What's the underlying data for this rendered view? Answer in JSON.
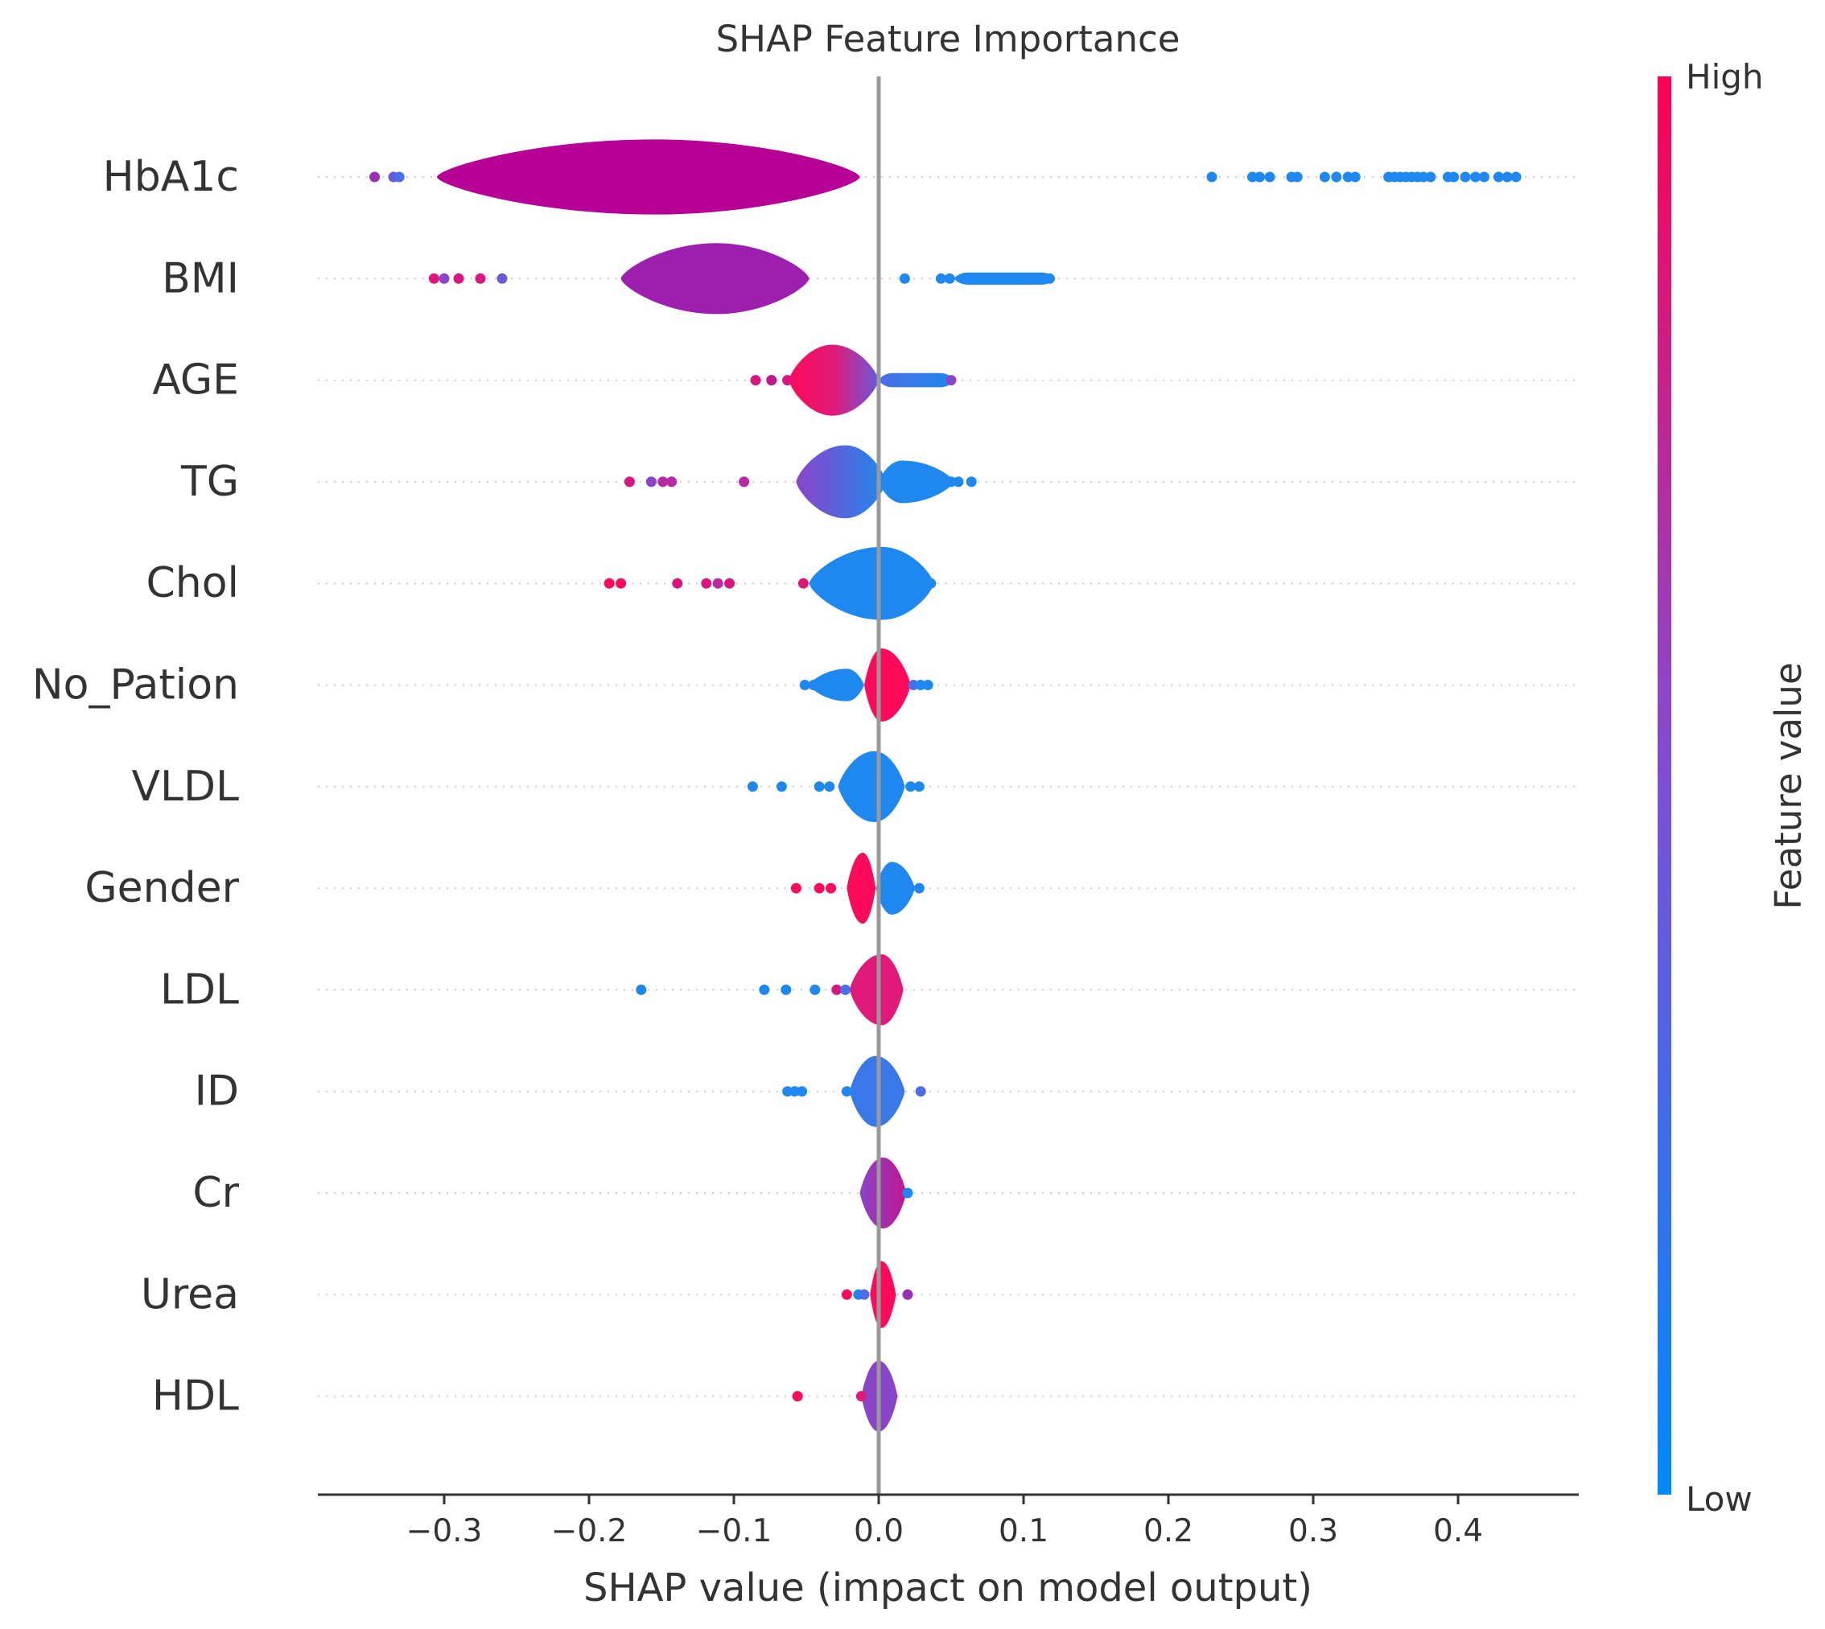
{
  "chart_data": {
    "type": "violin",
    "title": "SHAP Feature Importance",
    "xlabel": "SHAP value (impact on model output)",
    "ylabel": "",
    "xlim": [
      -0.385,
      0.48
    ],
    "x_ticks": [
      {
        "value": -0.3,
        "label": "−0.3"
      },
      {
        "value": -0.2,
        "label": "−0.2"
      },
      {
        "value": -0.1,
        "label": "−0.1"
      },
      {
        "value": 0.0,
        "label": "0.0"
      },
      {
        "value": 0.1,
        "label": "0.1"
      },
      {
        "value": 0.2,
        "label": "0.2"
      },
      {
        "value": 0.3,
        "label": "0.3"
      },
      {
        "value": 0.4,
        "label": "0.4"
      }
    ],
    "colorbar": {
      "label": "Feature value",
      "high_label": "High",
      "low_label": "Low",
      "high_color": "#ff0052",
      "mid_color": "#7c4fd8",
      "low_color": "#008bfb"
    },
    "features": [
      {
        "name": "HbA1c",
        "segments": [
          {
            "x0": -0.305,
            "x1": -0.013,
            "peak": -0.155,
            "h": 0.74,
            "shape": "smooth",
            "colors": [
              "#b60096",
              "#b60096"
            ]
          }
        ],
        "points": [
          {
            "x": -0.348,
            "c": "#9a2fb5"
          },
          {
            "x": -0.335,
            "c": "#6a5ad8"
          },
          {
            "x": -0.331,
            "c": "#4a6ee6"
          },
          {
            "x": 0.23,
            "c": "#1e88f0"
          },
          {
            "x": 0.258,
            "c": "#1e88f0"
          },
          {
            "x": 0.263,
            "c": "#1e88f0"
          },
          {
            "x": 0.27,
            "c": "#1e88f0"
          },
          {
            "x": 0.285,
            "c": "#1e88f0"
          },
          {
            "x": 0.289,
            "c": "#1e88f0"
          },
          {
            "x": 0.308,
            "c": "#1e88f0"
          },
          {
            "x": 0.316,
            "c": "#1e88f0"
          },
          {
            "x": 0.324,
            "c": "#1e88f0"
          },
          {
            "x": 0.329,
            "c": "#1e88f0"
          },
          {
            "x": 0.352,
            "c": "#1e88f0"
          },
          {
            "x": 0.356,
            "c": "#1e88f0"
          },
          {
            "x": 0.36,
            "c": "#1e88f0"
          },
          {
            "x": 0.364,
            "c": "#1e88f0"
          },
          {
            "x": 0.368,
            "c": "#1e88f0"
          },
          {
            "x": 0.372,
            "c": "#1e88f0"
          },
          {
            "x": 0.376,
            "c": "#1e88f0"
          },
          {
            "x": 0.381,
            "c": "#1e88f0"
          },
          {
            "x": 0.393,
            "c": "#1e88f0"
          },
          {
            "x": 0.397,
            "c": "#1e88f0"
          },
          {
            "x": 0.405,
            "c": "#1e88f0"
          },
          {
            "x": 0.412,
            "c": "#1e88f0"
          },
          {
            "x": 0.418,
            "c": "#1e88f0"
          },
          {
            "x": 0.428,
            "c": "#1e88f0"
          },
          {
            "x": 0.434,
            "c": "#1e88f0"
          },
          {
            "x": 0.44,
            "c": "#1e88f0"
          }
        ]
      },
      {
        "name": "BMI",
        "segments": [
          {
            "x0": -0.178,
            "x1": -0.048,
            "peak": -0.112,
            "h": 0.7,
            "shape": "smooth",
            "colors": [
              "#9c1fae",
              "#9c1fae"
            ]
          },
          {
            "x0": 0.052,
            "x1": 0.122,
            "peak": 0.085,
            "h": 0.12,
            "shape": "flat",
            "colors": [
              "#1e88f0",
              "#1e88f0"
            ]
          }
        ],
        "points": [
          {
            "x": -0.307,
            "c": "#e0157a"
          },
          {
            "x": -0.3,
            "c": "#8a44c8"
          },
          {
            "x": -0.29,
            "c": "#d9157e"
          },
          {
            "x": -0.275,
            "c": "#d9157e"
          },
          {
            "x": -0.26,
            "c": "#6a5ad8"
          },
          {
            "x": 0.018,
            "c": "#1e88f0"
          },
          {
            "x": 0.043,
            "c": "#1e88f0"
          },
          {
            "x": 0.049,
            "c": "#1e88f0"
          },
          {
            "x": 0.118,
            "c": "#1e88f0"
          }
        ]
      },
      {
        "name": "AGE",
        "segments": [
          {
            "x0": -0.062,
            "x1": 0.0,
            "peak": -0.032,
            "h": 0.7,
            "shape": "smooth",
            "colors": [
              "#ff0a5a",
              "#e01a78",
              "#6a5ad8"
            ]
          },
          {
            "x0": 0.0,
            "x1": 0.052,
            "peak": 0.006,
            "h": 0.14,
            "shape": "flat",
            "colors": [
              "#4a6ee6",
              "#1e88f0"
            ]
          }
        ],
        "points": [
          {
            "x": -0.085,
            "c": "#d9157e"
          },
          {
            "x": -0.074,
            "c": "#c0178f"
          },
          {
            "x": -0.063,
            "c": "#d9157e"
          },
          {
            "x": 0.05,
            "c": "#8a44c8"
          }
        ]
      },
      {
        "name": "TG",
        "segments": [
          {
            "x0": -0.057,
            "x1": 0.005,
            "peak": -0.023,
            "h": 0.72,
            "shape": "smooth",
            "colors": [
              "#8a44c8",
              "#1e88f0"
            ]
          },
          {
            "x0": 0.0,
            "x1": 0.052,
            "peak": 0.016,
            "h": 0.42,
            "shape": "smooth",
            "colors": [
              "#1e88f0",
              "#1e88f0"
            ]
          }
        ],
        "points": [
          {
            "x": -0.172,
            "c": "#d9157e"
          },
          {
            "x": -0.157,
            "c": "#8a44c8"
          },
          {
            "x": -0.149,
            "c": "#b82aa0"
          },
          {
            "x": -0.143,
            "c": "#b82aa0"
          },
          {
            "x": -0.093,
            "c": "#b82aa0"
          },
          {
            "x": 0.05,
            "c": "#1e88f0"
          },
          {
            "x": 0.055,
            "c": "#1e88f0"
          },
          {
            "x": 0.064,
            "c": "#1e88f0"
          }
        ]
      },
      {
        "name": "Chol",
        "segments": [
          {
            "x0": -0.048,
            "x1": 0.038,
            "peak": 0.002,
            "h": 0.72,
            "shape": "smooth",
            "colors": [
              "#1e88f0",
              "#1e88f0"
            ]
          }
        ],
        "points": [
          {
            "x": -0.186,
            "c": "#ff0a5a"
          },
          {
            "x": -0.178,
            "c": "#ff0a5a"
          },
          {
            "x": -0.139,
            "c": "#d9157e"
          },
          {
            "x": -0.119,
            "c": "#d9157e"
          },
          {
            "x": -0.111,
            "c": "#b82aa0"
          },
          {
            "x": -0.103,
            "c": "#d9157e"
          },
          {
            "x": -0.052,
            "c": "#e0157a"
          },
          {
            "x": 0.036,
            "c": "#1e88f0"
          }
        ]
      },
      {
        "name": "No_Pation",
        "segments": [
          {
            "x0": -0.048,
            "x1": -0.01,
            "peak": -0.022,
            "h": 0.32,
            "shape": "smooth",
            "colors": [
              "#1e88f0",
              "#1e88f0"
            ]
          },
          {
            "x0": -0.01,
            "x1": 0.022,
            "peak": 0.002,
            "h": 0.72,
            "shape": "smooth",
            "colors": [
              "#ff0a5a",
              "#ff0a5a"
            ]
          }
        ],
        "points": [
          {
            "x": -0.051,
            "c": "#1e88f0"
          },
          {
            "x": -0.045,
            "c": "#1e88f0"
          },
          {
            "x": 0.024,
            "c": "#4a6ee6"
          },
          {
            "x": 0.029,
            "c": "#1e88f0"
          },
          {
            "x": 0.034,
            "c": "#1e88f0"
          }
        ]
      },
      {
        "name": "VLDL",
        "segments": [
          {
            "x0": -0.028,
            "x1": 0.018,
            "peak": -0.003,
            "h": 0.7,
            "shape": "smooth",
            "colors": [
              "#1e88f0",
              "#1e88f0"
            ]
          }
        ],
        "points": [
          {
            "x": -0.087,
            "c": "#1e88f0"
          },
          {
            "x": -0.067,
            "c": "#1e88f0"
          },
          {
            "x": -0.041,
            "c": "#1e88f0"
          },
          {
            "x": -0.034,
            "c": "#1e88f0"
          },
          {
            "x": 0.022,
            "c": "#1e88f0"
          },
          {
            "x": 0.028,
            "c": "#1e88f0"
          }
        ]
      },
      {
        "name": "Gender",
        "segments": [
          {
            "x0": -0.022,
            "x1": -0.002,
            "peak": -0.011,
            "h": 0.7,
            "shape": "smooth",
            "colors": [
              "#ff0a5a",
              "#ff0a5a"
            ]
          },
          {
            "x0": -0.002,
            "x1": 0.025,
            "peak": 0.009,
            "h": 0.52,
            "shape": "smooth",
            "colors": [
              "#1e88f0",
              "#1e88f0"
            ]
          }
        ],
        "points": [
          {
            "x": -0.057,
            "c": "#ff0a5a"
          },
          {
            "x": -0.041,
            "c": "#ff0a5a"
          },
          {
            "x": -0.033,
            "c": "#ff0a5a"
          },
          {
            "x": 0.028,
            "c": "#1e88f0"
          }
        ]
      },
      {
        "name": "LDL",
        "segments": [
          {
            "x0": -0.02,
            "x1": 0.017,
            "peak": 0.002,
            "h": 0.7,
            "shape": "smooth",
            "colors": [
              "#e01a78",
              "#e01a78"
            ]
          }
        ],
        "points": [
          {
            "x": -0.164,
            "c": "#1e88f0"
          },
          {
            "x": -0.079,
            "c": "#1e88f0"
          },
          {
            "x": -0.064,
            "c": "#1e88f0"
          },
          {
            "x": -0.044,
            "c": "#1e88f0"
          },
          {
            "x": -0.029,
            "c": "#d9157e"
          },
          {
            "x": -0.023,
            "c": "#4a6ee6"
          }
        ]
      },
      {
        "name": "ID",
        "segments": [
          {
            "x0": -0.02,
            "x1": 0.018,
            "peak": -0.002,
            "h": 0.7,
            "shape": "smooth",
            "colors": [
              "#3a78ea",
              "#3a78ea"
            ]
          }
        ],
        "points": [
          {
            "x": -0.063,
            "c": "#1e88f0"
          },
          {
            "x": -0.058,
            "c": "#1e88f0"
          },
          {
            "x": -0.053,
            "c": "#1e88f0"
          },
          {
            "x": -0.022,
            "c": "#1e88f0"
          },
          {
            "x": 0.029,
            "c": "#4a6ee6"
          }
        ]
      },
      {
        "name": "Cr",
        "segments": [
          {
            "x0": -0.013,
            "x1": 0.019,
            "peak": 0.003,
            "h": 0.7,
            "shape": "smooth",
            "colors": [
              "#8a44c8",
              "#c0178f"
            ]
          }
        ],
        "points": [
          {
            "x": 0.02,
            "c": "#1e88f0"
          }
        ]
      },
      {
        "name": "Urea",
        "segments": [
          {
            "x0": -0.006,
            "x1": 0.012,
            "peak": 0.002,
            "h": 0.66,
            "shape": "smooth",
            "colors": [
              "#ff0a5a",
              "#ff0a5a"
            ]
          }
        ],
        "points": [
          {
            "x": -0.022,
            "c": "#ff0a5a"
          },
          {
            "x": -0.014,
            "c": "#1e88f0"
          },
          {
            "x": -0.01,
            "c": "#4a6ee6"
          },
          {
            "x": 0.02,
            "c": "#9a2fb5"
          }
        ]
      },
      {
        "name": "HDL",
        "segments": [
          {
            "x0": -0.012,
            "x1": 0.013,
            "peak": 0.0,
            "h": 0.7,
            "shape": "smooth",
            "colors": [
              "#8a44c8",
              "#8a44c8"
            ]
          }
        ],
        "points": [
          {
            "x": -0.056,
            "c": "#ff0a5a"
          },
          {
            "x": -0.012,
            "c": "#e01a78"
          }
        ]
      }
    ]
  }
}
